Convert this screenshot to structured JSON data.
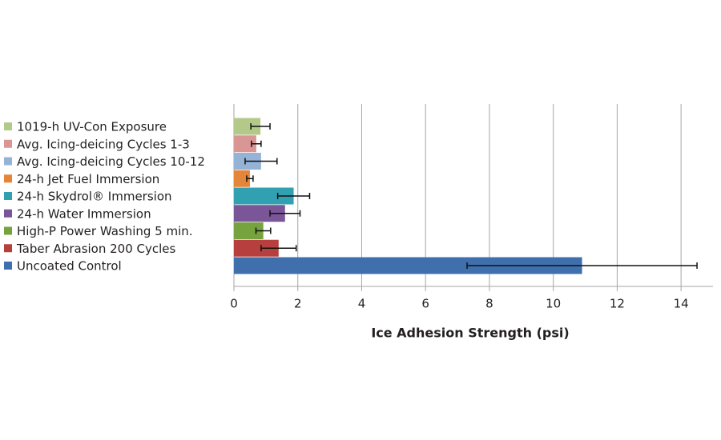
{
  "chart_data": {
    "type": "barh",
    "x_label": "Ice Adhesion Strength (psi)",
    "categories": [
      "1019-h UV-Con Exposure",
      "Avg. Icing-deicing Cycles 1-3",
      "Avg. Icing-deicing Cycles 10-12",
      "24-h Jet Fuel Immersion",
      "24-h Skydrol® Immersion",
      "24-h Water Immersion",
      "High-P Power Washing 5 min.",
      "Taber Abrasion 200 Cycles",
      "Uncoated Control"
    ],
    "values": [
      0.83,
      0.7,
      0.85,
      0.5,
      1.87,
      1.6,
      0.92,
      1.4,
      10.9
    ],
    "errors": [
      0.3,
      0.15,
      0.5,
      0.1,
      0.5,
      0.47,
      0.23,
      0.55,
      3.6
    ],
    "colors": [
      "#b3c98a",
      "#d99694",
      "#95b3d7",
      "#e4853a",
      "#31a0b0",
      "#7a5597",
      "#77a33e",
      "#b7403f",
      "#3f6fac"
    ],
    "xlim": [
      0,
      15
    ],
    "xticks": [
      0,
      2,
      4,
      6,
      8,
      10,
      12,
      14
    ],
    "grid": true
  }
}
